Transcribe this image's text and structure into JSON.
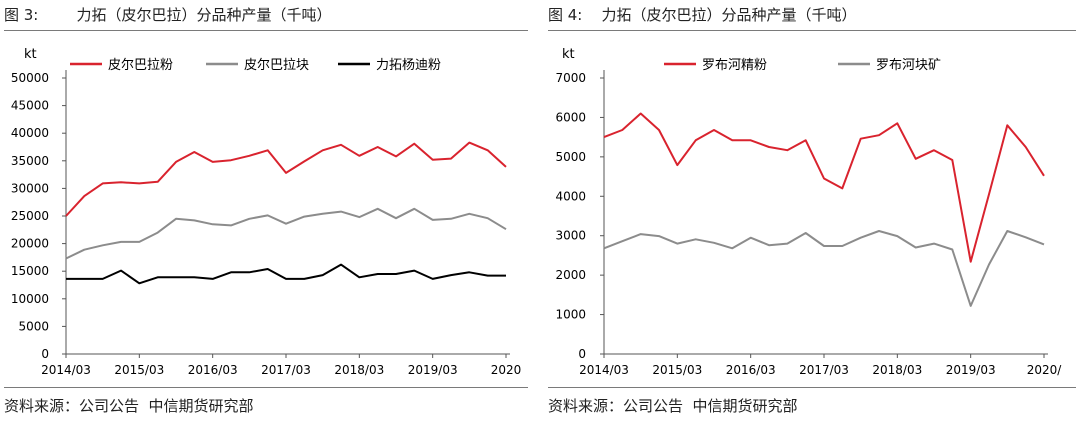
{
  "charts": [
    {
      "figure_title": "图 3:        力拓（皮尔巴拉）分品种产量（千吨）",
      "source": "资料来源：公司公告  中信期货研究部",
      "chart_data": {
        "type": "line",
        "title": "",
        "ylabel": "kt",
        "xlabel": "",
        "ylim": [
          0,
          50000
        ],
        "yticks": [
          0,
          5000,
          10000,
          15000,
          20000,
          25000,
          30000,
          35000,
          40000,
          45000,
          50000
        ],
        "x_tick_labels": [
          "2014/03",
          "2015/03",
          "2016/03",
          "2017/03",
          "2018/03",
          "2019/03",
          "2020"
        ],
        "x_tick_positions": [
          0,
          4,
          8,
          12,
          16,
          20,
          24
        ],
        "grid": false,
        "legend_position": "top",
        "series": [
          {
            "name": "皮尔巴拉粉",
            "color": "#d9232e",
            "values": [
              25000,
              28600,
              30900,
              31100,
              30900,
              31200,
              34800,
              36600,
              34800,
              35100,
              35900,
              36900,
              32800,
              34900,
              36900,
              37900,
              35900,
              37500,
              35800,
              38100,
              35200,
              35400,
              38300,
              36900,
              33900
            ]
          },
          {
            "name": "皮尔巴拉块",
            "color": "#8c8c8c",
            "values": [
              17300,
              18900,
              19700,
              20300,
              20300,
              22000,
              24500,
              24200,
              23500,
              23300,
              24500,
              25100,
              23600,
              24900,
              25400,
              25800,
              24800,
              26300,
              24600,
              26300,
              24300,
              24500,
              25400,
              24600,
              22600
            ]
          },
          {
            "name": "力拓杨迪粉",
            "color": "#000000",
            "values": [
              13600,
              13600,
              13600,
              15100,
              12800,
              13900,
              13900,
              13900,
              13600,
              14800,
              14800,
              15400,
              13600,
              13600,
              14300,
              16200,
              13900,
              14500,
              14500,
              15100,
              13600,
              14300,
              14800,
              14200,
              14200
            ]
          }
        ]
      }
    },
    {
      "figure_title": "图 4:    力拓（皮尔巴拉）分品种产量（千吨）",
      "source": "资料来源：公司公告  中信期货研究部",
      "chart_data": {
        "type": "line",
        "title": "",
        "ylabel": "kt",
        "xlabel": "",
        "ylim": [
          0,
          7000
        ],
        "yticks": [
          0,
          1000,
          2000,
          3000,
          4000,
          5000,
          6000,
          7000
        ],
        "x_tick_labels": [
          "2014/03",
          "2015/03",
          "2016/03",
          "2017/03",
          "2018/03",
          "2019/03",
          "2020/"
        ],
        "x_tick_positions": [
          0,
          4,
          8,
          12,
          16,
          20,
          24
        ],
        "grid": false,
        "legend_position": "top",
        "series": [
          {
            "name": "罗布河精粉",
            "color": "#d9232e",
            "values": [
              5500,
              5680,
              6100,
              5680,
              4790,
              5420,
              5680,
              5420,
              5420,
              5250,
              5170,
              5420,
              4450,
              4200,
              5460,
              5550,
              5850,
              4950,
              5170,
              4920,
              2340,
              4050,
              5800,
              5250,
              4520
            ]
          },
          {
            "name": "罗布河块矿",
            "color": "#8c8c8c",
            "values": [
              2680,
              2860,
              3040,
              2990,
              2800,
              2910,
              2820,
              2680,
              2950,
              2760,
              2800,
              3070,
              2740,
              2740,
              2950,
              3120,
              2990,
              2700,
              2800,
              2650,
              1220,
              2270,
              3120,
              2960,
              2780
            ]
          }
        ]
      }
    }
  ]
}
